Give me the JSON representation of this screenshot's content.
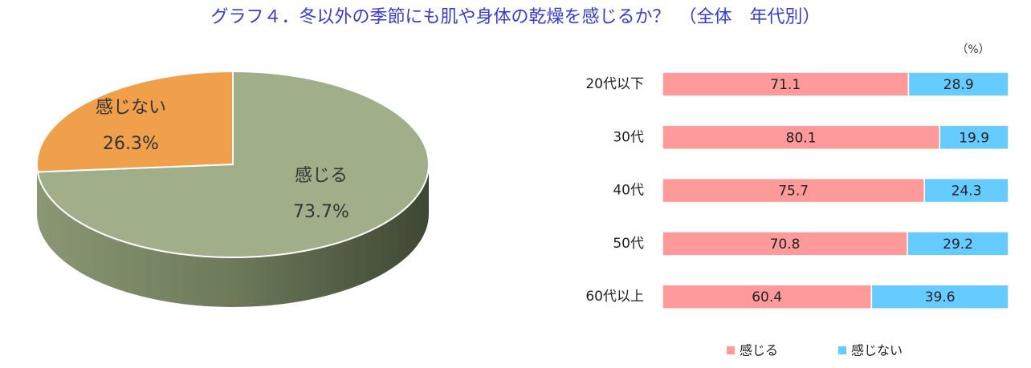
{
  "title": "グラフ４．冬以外の季節にも肌や身体の乾燥を感じるか？　（全体　年代別）",
  "chart_data": [
    {
      "type": "pie",
      "categories": [
        "感じる",
        "感じない"
      ],
      "values": [
        73.7,
        26.3
      ],
      "value_labels": [
        "73.7%",
        "26.3%"
      ],
      "colors": [
        "#a0ae8a",
        "#f0a04b"
      ]
    },
    {
      "type": "bar",
      "orientation": "horizontal",
      "stacked": true,
      "unit": "（%）",
      "categories": [
        "20代以下",
        "30代",
        "40代",
        "50代",
        "60代以上"
      ],
      "series": [
        {
          "name": "感じる",
          "color": "#ff9a9a",
          "values": [
            71.1,
            80.1,
            75.7,
            70.8,
            60.4
          ]
        },
        {
          "name": "感じない",
          "color": "#66ccff",
          "values": [
            28.9,
            19.9,
            24.3,
            29.2,
            39.6
          ]
        }
      ],
      "xlim": [
        0,
        100
      ],
      "legend": "bottom"
    }
  ]
}
